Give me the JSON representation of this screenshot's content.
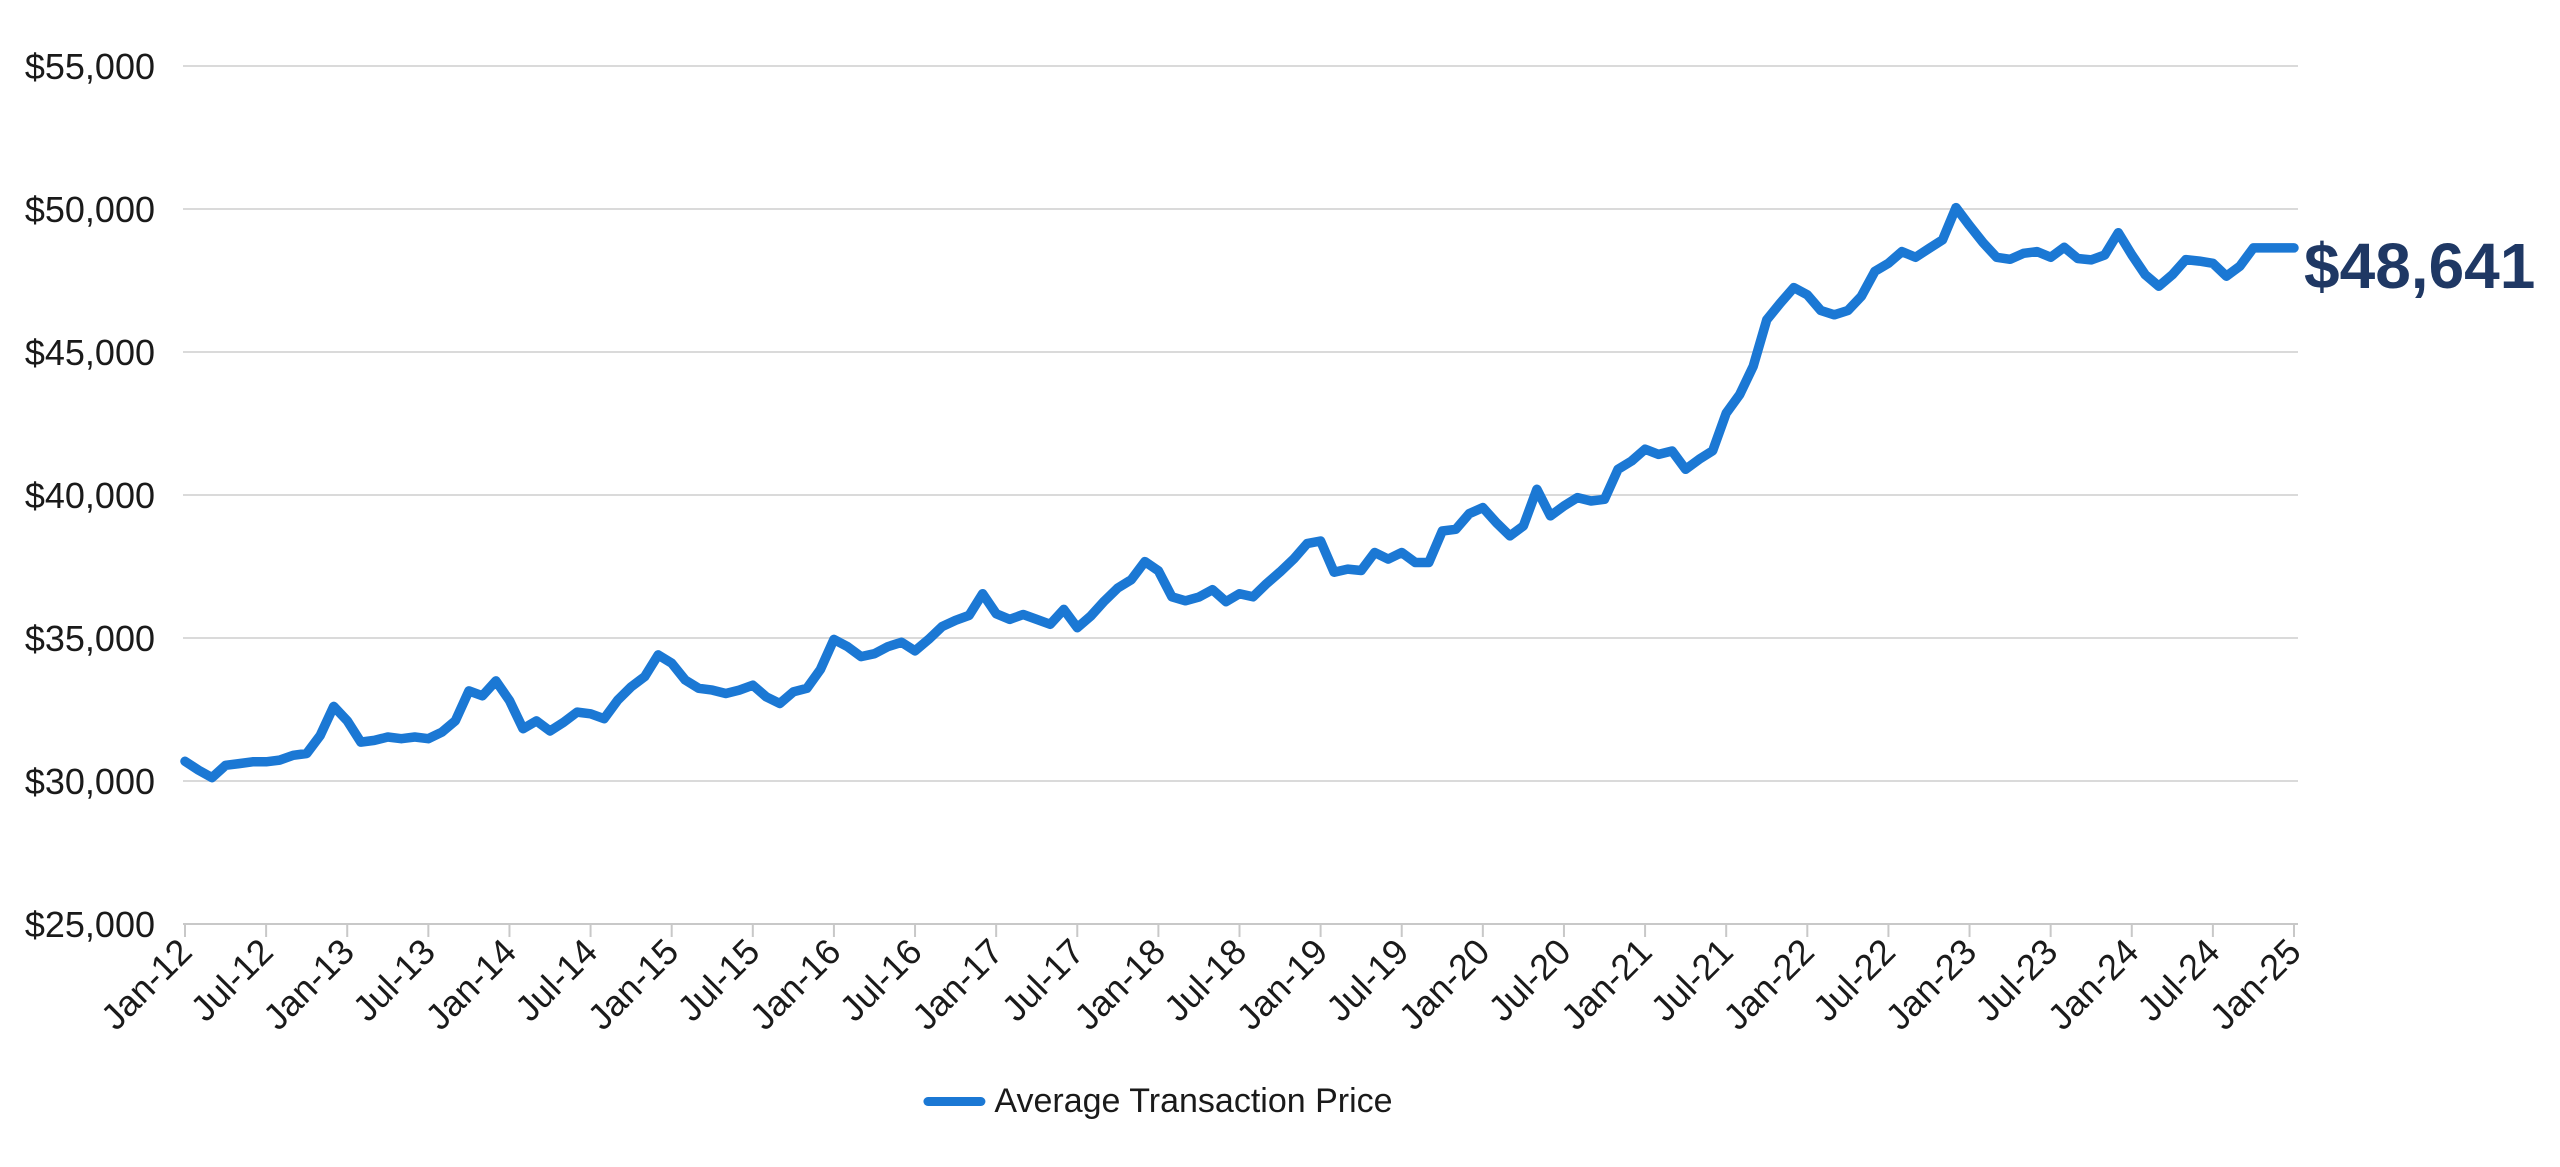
{
  "chart_data": {
    "type": "line",
    "title": "",
    "legend_position": "bottom-center",
    "grid": true,
    "x_axis": {
      "start_label": "Jan-12",
      "end_label": "Jan-25",
      "months_per_tick": 6,
      "tick_labels": [
        "Jan-12",
        "Jul-12",
        "Jan-13",
        "Jul-13",
        "Jan-14",
        "Jul-14",
        "Jan-15",
        "Jul-15",
        "Jan-16",
        "Jul-16",
        "Jan-17",
        "Jul-17",
        "Jan-18",
        "Jul-18",
        "Jan-19",
        "Jul-19",
        "Jan-20",
        "Jul-20",
        "Jan-21",
        "Jul-21",
        "Jan-22",
        "Jul-22",
        "Jan-23",
        "Jul-23",
        "Jan-24",
        "Jul-24",
        "Jan-25"
      ]
    },
    "y_axis": {
      "min": 25000,
      "max": 55000,
      "step": 5000,
      "tick_labels": [
        "$55,000",
        "$50,000",
        "$45,000",
        "$40,000",
        "$35,000",
        "$30,000",
        "$25,000"
      ]
    },
    "series": [
      {
        "name": "Average Transaction Price",
        "color": "#1B78D4",
        "values": [
          30690,
          30380,
          30120,
          30550,
          30610,
          30670,
          30670,
          30730,
          30900,
          30960,
          31590,
          32610,
          32110,
          31360,
          31420,
          31540,
          31480,
          31540,
          31480,
          31710,
          32110,
          33150,
          32980,
          33500,
          32810,
          31830,
          32100,
          31750,
          32050,
          32410,
          32350,
          32180,
          32820,
          33290,
          33650,
          34410,
          34120,
          33530,
          33240,
          33180,
          33060,
          33180,
          33350,
          32940,
          32710,
          33120,
          33240,
          33900,
          34950,
          34700,
          34350,
          34450,
          34700,
          34850,
          34550,
          34950,
          35400,
          35620,
          35790,
          36550,
          35850,
          35650,
          35820,
          35650,
          35480,
          36000,
          35360,
          35770,
          36290,
          36750,
          37040,
          37670,
          37350,
          36440,
          36300,
          36430,
          36690,
          36270,
          36550,
          36440,
          36900,
          37310,
          37760,
          38300,
          38390,
          37300,
          37410,
          37360,
          37990,
          37760,
          37990,
          37640,
          37640,
          38740,
          38800,
          39350,
          39560,
          39030,
          38570,
          38920,
          40200,
          39270,
          39620,
          39910,
          39790,
          39850,
          40900,
          41190,
          41600,
          41420,
          41540,
          40900,
          41250,
          41550,
          42860,
          43510,
          44500,
          46130,
          46710,
          47250,
          47000,
          46450,
          46300,
          46450,
          46950,
          47820,
          48100,
          48510,
          48310,
          48620,
          48920,
          50050,
          49420,
          48820,
          48310,
          48240,
          48450,
          48510,
          48310,
          48660,
          48270,
          48220,
          48390,
          49170,
          48400,
          47700,
          47300,
          47700,
          48230,
          48180,
          48100,
          47650,
          48000,
          48640,
          48640,
          48640,
          48641
        ]
      }
    ],
    "end_label": {
      "text": "$48,641",
      "color": "#1F3864"
    }
  },
  "legend": {
    "label": "Average Transaction Price"
  },
  "colors": {
    "line": "#1B78D4",
    "grid": "#DADADA",
    "axis": "#C8C8C8",
    "tick": "#C8C8C8",
    "text": "#1A1A1A",
    "end_label": "#1F3864",
    "background": "#FFFFFF"
  }
}
